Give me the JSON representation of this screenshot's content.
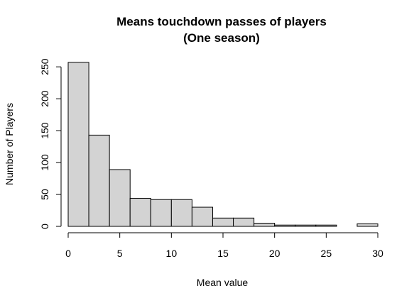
{
  "chart_data": {
    "type": "bar",
    "title_line1": "Means touchdown passes of players",
    "title_line2": "(One season)",
    "xlabel": "Mean value",
    "ylabel": "Number of Players",
    "xlim": [
      0,
      30
    ],
    "ylim": [
      0,
      258
    ],
    "xticks": [
      0,
      5,
      10,
      15,
      20,
      25,
      30
    ],
    "yticks": [
      0,
      50,
      100,
      150,
      200,
      250
    ],
    "bins": [
      {
        "from": 0,
        "to": 2,
        "count": 257
      },
      {
        "from": 2,
        "to": 4,
        "count": 143
      },
      {
        "from": 4,
        "to": 6,
        "count": 89
      },
      {
        "from": 6,
        "to": 8,
        "count": 44
      },
      {
        "from": 8,
        "to": 10,
        "count": 42
      },
      {
        "from": 10,
        "to": 12,
        "count": 42
      },
      {
        "from": 12,
        "to": 14,
        "count": 30
      },
      {
        "from": 14,
        "to": 16,
        "count": 13
      },
      {
        "from": 16,
        "to": 18,
        "count": 13
      },
      {
        "from": 18,
        "to": 20,
        "count": 5
      },
      {
        "from": 20,
        "to": 22,
        "count": 2
      },
      {
        "from": 22,
        "to": 24,
        "count": 2
      },
      {
        "from": 24,
        "to": 26,
        "count": 2
      },
      {
        "from": 26,
        "to": 28,
        "count": 0
      },
      {
        "from": 28,
        "to": 30,
        "count": 4
      }
    ],
    "bar_color": "#d3d3d3",
    "grid": false
  }
}
